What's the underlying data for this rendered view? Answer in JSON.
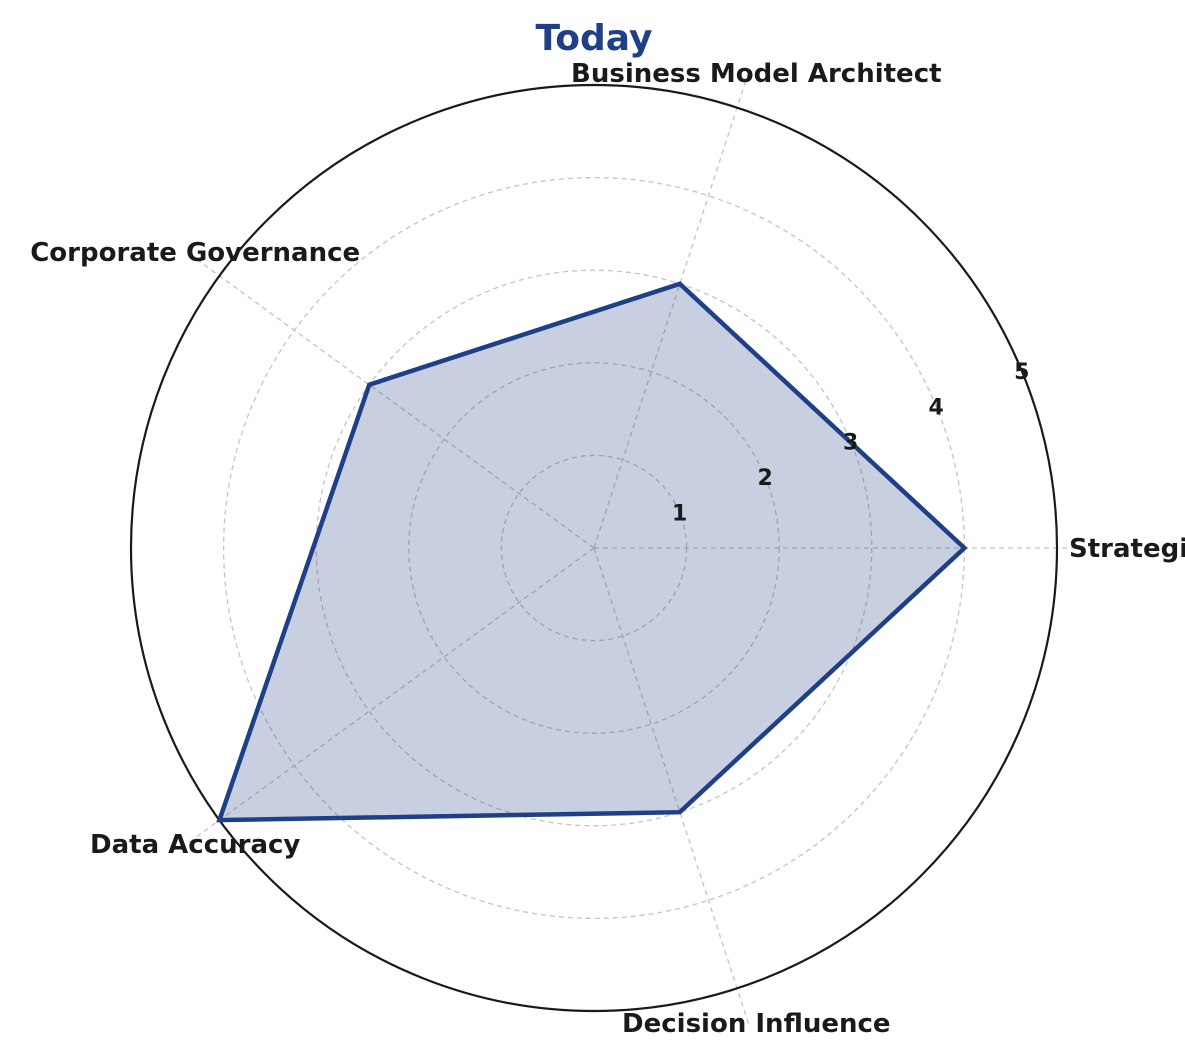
{
  "chart_data": {
    "type": "radar",
    "title": "Today",
    "categories": [
      "Strategist",
      "Business Model Architect",
      "Corporate Governance",
      "Data Accuracy",
      "Decision Influence"
    ],
    "series": [
      {
        "values": [
          4,
          3,
          3,
          5,
          3
        ]
      }
    ],
    "rlim": [
      0,
      5
    ],
    "rticks": [
      1,
      2,
      3,
      4,
      5
    ],
    "rtick_labels": [
      "1",
      "2",
      "3",
      "4",
      "5"
    ],
    "grid": true,
    "colors": {
      "title": "#1f3f87",
      "line": "#1f3f87",
      "fill": "#1f3f87",
      "fill_opacity": 0.25,
      "grid": "#c4c4c4",
      "outer_ring": "#1a1a1a",
      "text": "#1a1a1a"
    }
  }
}
